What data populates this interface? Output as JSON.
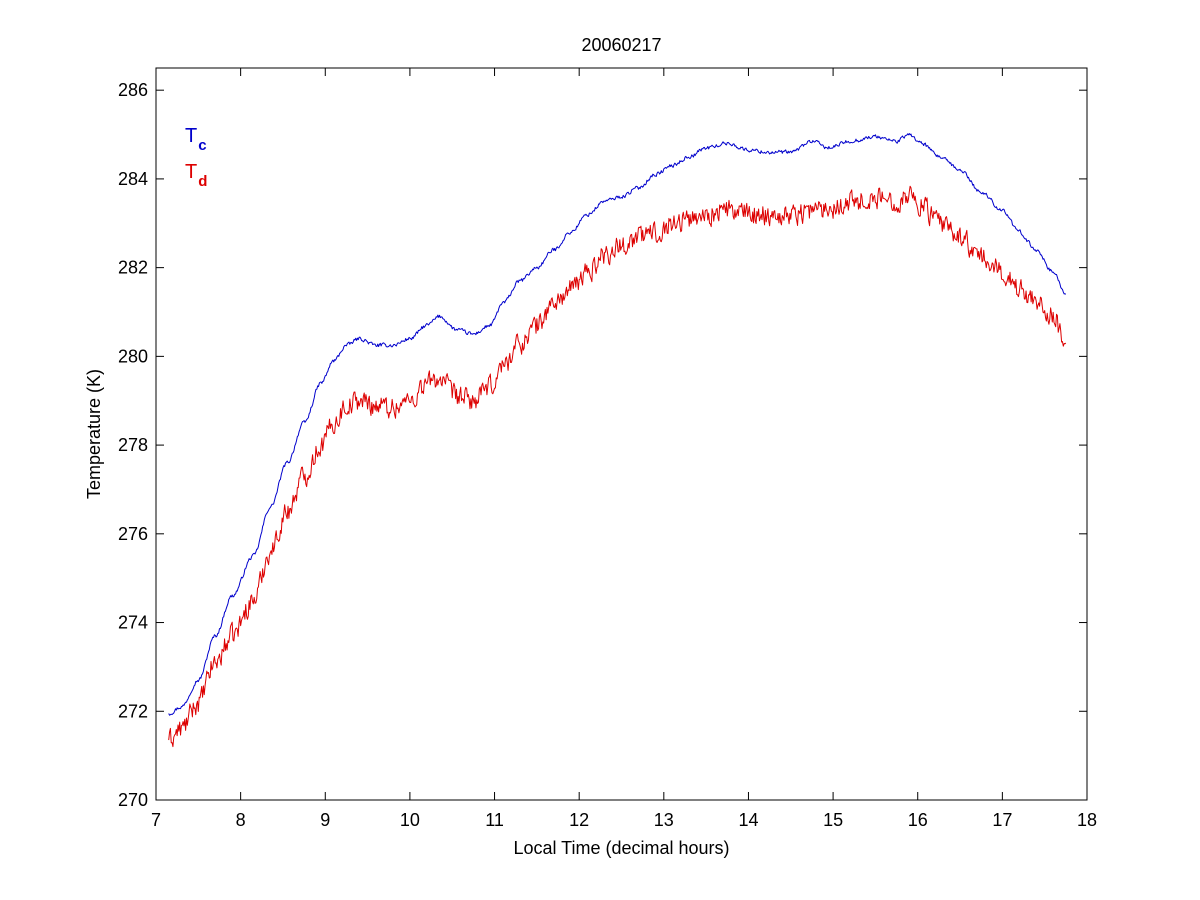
{
  "chart_data": {
    "type": "line",
    "title": "20060217",
    "xlabel": "Local Time (decimal hours)",
    "ylabel": "Temperature (K)",
    "xlim": [
      7,
      18
    ],
    "ylim": [
      270,
      286.5
    ],
    "xticks": [
      7,
      8,
      9,
      10,
      11,
      12,
      13,
      14,
      15,
      16,
      17,
      18
    ],
    "yticks": [
      270,
      272,
      274,
      276,
      278,
      280,
      282,
      284,
      286
    ],
    "grid": false,
    "legend_position": "top-left",
    "series": [
      {
        "name": "T",
        "name_subscript": "c",
        "color": "#0000cc",
        "noise": 0.04,
        "points": [
          [
            7.15,
            271.95
          ],
          [
            7.3,
            272.1
          ],
          [
            7.5,
            272.7
          ],
          [
            7.7,
            273.7
          ],
          [
            7.9,
            274.6
          ],
          [
            8.15,
            275.5
          ],
          [
            8.35,
            276.6
          ],
          [
            8.55,
            277.6
          ],
          [
            8.75,
            278.5
          ],
          [
            8.95,
            279.4
          ],
          [
            9.1,
            279.9
          ],
          [
            9.25,
            280.25
          ],
          [
            9.4,
            280.4
          ],
          [
            9.6,
            280.25
          ],
          [
            9.8,
            280.25
          ],
          [
            10.0,
            280.4
          ],
          [
            10.2,
            280.7
          ],
          [
            10.35,
            280.9
          ],
          [
            10.55,
            280.6
          ],
          [
            10.75,
            280.5
          ],
          [
            10.95,
            280.7
          ],
          [
            11.1,
            281.2
          ],
          [
            11.3,
            281.7
          ],
          [
            11.5,
            282.0
          ],
          [
            11.7,
            282.4
          ],
          [
            11.9,
            282.8
          ],
          [
            12.1,
            283.2
          ],
          [
            12.3,
            283.5
          ],
          [
            12.5,
            283.6
          ],
          [
            12.7,
            283.8
          ],
          [
            12.9,
            284.1
          ],
          [
            13.1,
            284.3
          ],
          [
            13.3,
            284.5
          ],
          [
            13.5,
            284.7
          ],
          [
            13.75,
            284.8
          ],
          [
            14.0,
            284.65
          ],
          [
            14.25,
            284.6
          ],
          [
            14.5,
            284.6
          ],
          [
            14.75,
            284.85
          ],
          [
            14.95,
            284.7
          ],
          [
            15.2,
            284.85
          ],
          [
            15.5,
            284.95
          ],
          [
            15.75,
            284.85
          ],
          [
            15.9,
            285.0
          ],
          [
            16.05,
            284.8
          ],
          [
            16.25,
            284.5
          ],
          [
            16.5,
            284.2
          ],
          [
            16.75,
            283.7
          ],
          [
            17.0,
            283.3
          ],
          [
            17.2,
            282.8
          ],
          [
            17.4,
            282.4
          ],
          [
            17.6,
            281.9
          ],
          [
            17.75,
            281.4
          ]
        ]
      },
      {
        "name": "T",
        "name_subscript": "d",
        "color": "#dd0000",
        "noise": 0.22,
        "points": [
          [
            7.15,
            271.35
          ],
          [
            7.3,
            271.6
          ],
          [
            7.5,
            272.2
          ],
          [
            7.7,
            273.1
          ],
          [
            7.9,
            273.7
          ],
          [
            8.15,
            274.5
          ],
          [
            8.35,
            275.6
          ],
          [
            8.55,
            276.5
          ],
          [
            8.75,
            277.3
          ],
          [
            8.95,
            278.0
          ],
          [
            9.1,
            278.5
          ],
          [
            9.25,
            278.9
          ],
          [
            9.4,
            279.0
          ],
          [
            9.6,
            278.9
          ],
          [
            9.8,
            278.85
          ],
          [
            10.0,
            279.0
          ],
          [
            10.2,
            279.4
          ],
          [
            10.35,
            279.5
          ],
          [
            10.55,
            279.1
          ],
          [
            10.75,
            279.0
          ],
          [
            10.95,
            279.3
          ],
          [
            11.1,
            279.8
          ],
          [
            11.3,
            280.3
          ],
          [
            11.5,
            280.7
          ],
          [
            11.7,
            281.2
          ],
          [
            11.9,
            281.5
          ],
          [
            12.1,
            281.9
          ],
          [
            12.3,
            282.3
          ],
          [
            12.5,
            282.5
          ],
          [
            12.7,
            282.7
          ],
          [
            12.9,
            282.8
          ],
          [
            13.1,
            283.0
          ],
          [
            13.3,
            283.1
          ],
          [
            13.5,
            283.2
          ],
          [
            13.75,
            283.3
          ],
          [
            14.0,
            283.2
          ],
          [
            14.25,
            283.2
          ],
          [
            14.5,
            283.2
          ],
          [
            14.75,
            283.3
          ],
          [
            14.95,
            283.35
          ],
          [
            15.2,
            283.5
          ],
          [
            15.5,
            283.55
          ],
          [
            15.75,
            283.5
          ],
          [
            15.9,
            283.65
          ],
          [
            16.05,
            283.4
          ],
          [
            16.25,
            283.0
          ],
          [
            16.5,
            282.7
          ],
          [
            16.75,
            282.2
          ],
          [
            17.0,
            281.9
          ],
          [
            17.2,
            281.5
          ],
          [
            17.4,
            281.3
          ],
          [
            17.6,
            280.9
          ],
          [
            17.75,
            280.3
          ]
        ]
      }
    ]
  }
}
